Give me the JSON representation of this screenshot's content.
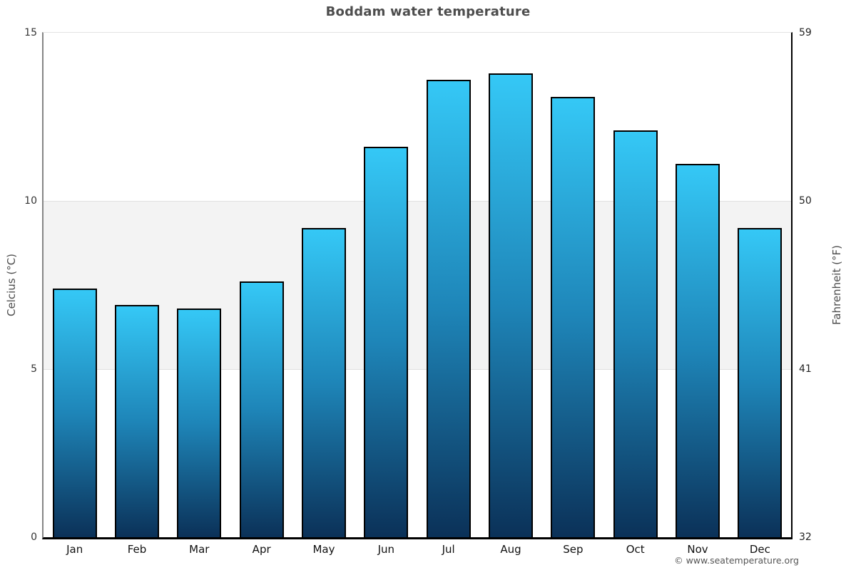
{
  "title": "Boddam water temperature",
  "axes": {
    "left_title": "Celcius (°C)",
    "right_title": "Fahrenheit (°F)"
  },
  "footer": {
    "copyright": "© www.seatemperature.org"
  },
  "chart_data": {
    "type": "bar",
    "title": "Boddam water temperature",
    "categories": [
      "Jan",
      "Feb",
      "Mar",
      "Apr",
      "May",
      "Jun",
      "Jul",
      "Aug",
      "Sep",
      "Oct",
      "Nov",
      "Dec"
    ],
    "series": [
      {
        "name": "Water temperature",
        "unit": "°C",
        "values": [
          7.4,
          6.9,
          6.8,
          7.6,
          9.2,
          11.6,
          13.6,
          13.8,
          13.1,
          12.1,
          11.1,
          9.2
        ]
      }
    ],
    "xlabel": "",
    "ylabel_left": "Celcius (°C)",
    "ylabel_right": "Fahrenheit (°F)",
    "ylim_celsius": [
      0,
      15
    ],
    "yticks": [
      {
        "celsius": 0,
        "celsius_label": "0",
        "fahrenheit_label": "32"
      },
      {
        "celsius": 5,
        "celsius_label": "5",
        "fahrenheit_label": "41"
      },
      {
        "celsius": 10,
        "celsius_label": "10",
        "fahrenheit_label": "50"
      },
      {
        "celsius": 15,
        "celsius_label": "15",
        "fahrenheit_label": "59"
      }
    ],
    "plot_band": {
      "from_celsius": 5,
      "to_celsius": 10,
      "color": "#f3f3f3"
    },
    "bar_gradient": {
      "top": "#35c8f6",
      "mid": "#1e85b8",
      "bottom": "#0b3158"
    },
    "bar_border_color": "#000000",
    "legend": "none",
    "grid": "horizontal-band"
  }
}
